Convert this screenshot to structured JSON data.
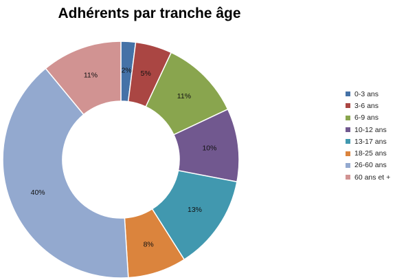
{
  "chart_data": {
    "type": "pie",
    "variant": "donut",
    "title": "Adhérents par tranche âge",
    "categories": [
      "0-3 ans",
      "3-6 ans",
      "6-9 ans",
      "10-12 ans",
      "13-17 ans",
      "18-25 ans",
      "26-60 ans",
      "60 ans et +"
    ],
    "values": [
      2,
      5,
      11,
      10,
      13,
      8,
      40,
      11
    ],
    "labels": [
      "2%",
      "5%",
      "11%",
      "10%",
      "13%",
      "8%",
      "40%",
      "11%"
    ],
    "colors": [
      "#4572A7",
      "#AA4643",
      "#89A54E",
      "#71588F",
      "#4198AF",
      "#DB843D",
      "#93A9CF",
      "#D19392"
    ],
    "legend_position": "right"
  }
}
